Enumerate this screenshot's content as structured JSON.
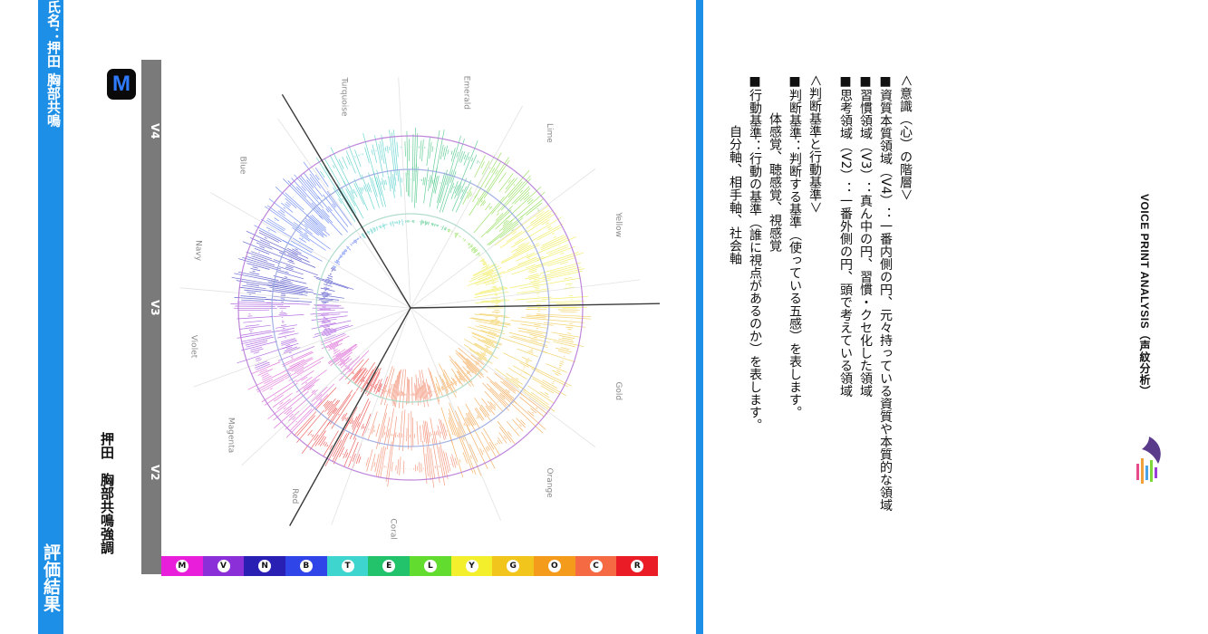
{
  "header": {
    "title": "評価結果",
    "name": "氏名：押田 胸部共鳴"
  },
  "subject": {
    "label": "押田　胸部共鳴強調"
  },
  "logo_letter": "M",
  "levels": [
    {
      "label": "V4"
    },
    {
      "label": "V3"
    },
    {
      "label": "V2"
    }
  ],
  "color_bar": [
    {
      "letter": "M",
      "color": "#e91edb"
    },
    {
      "letter": "V",
      "color": "#8b2fd8"
    },
    {
      "letter": "N",
      "color": "#2a1fb3"
    },
    {
      "letter": "B",
      "color": "#2f45e8"
    },
    {
      "letter": "T",
      "color": "#3ed5cf"
    },
    {
      "letter": "E",
      "color": "#22c36b"
    },
    {
      "letter": "L",
      "color": "#62dc2e"
    },
    {
      "letter": "Y",
      "color": "#f4ef2d"
    },
    {
      "letter": "G",
      "color": "#f2c51d"
    },
    {
      "letter": "O",
      "color": "#f59b1c"
    },
    {
      "letter": "C",
      "color": "#f56a43"
    },
    {
      "letter": "R",
      "color": "#ea1d26"
    }
  ],
  "chart_data": {
    "type": "radial",
    "sectors": [
      {
        "name": "Red",
        "color": "#e8302e"
      },
      {
        "name": "Magenta",
        "color": "#d64fcf"
      },
      {
        "name": "Violet",
        "color": "#9a3ed8"
      },
      {
        "name": "Navy",
        "color": "#3535c0"
      },
      {
        "name": "Blue",
        "color": "#4a6cf0"
      },
      {
        "name": "Turquoise",
        "color": "#3fc9c4"
      },
      {
        "name": "Emerald",
        "color": "#34bf78"
      },
      {
        "name": "Lime",
        "color": "#7ed83a"
      },
      {
        "name": "Yellow",
        "color": "#eee83a"
      },
      {
        "name": "Gold",
        "color": "#efc43a"
      },
      {
        "name": "Orange",
        "color": "#f29a3a"
      },
      {
        "name": "Coral",
        "color": "#f07a5a"
      }
    ],
    "rings": [
      "V2",
      "V3",
      "V4"
    ]
  },
  "description": {
    "section1_title": "＜意識（心）の階層＞",
    "section1_items": [
      "■資質本質領域（V4）：一番内側の円、元々持っている資質や本質的な領域",
      "■習慣領域（V3）：真ん中の円、習慣・クセ化した領域",
      "■思考領域（V2）：一番外側の円、頭で考えている領域"
    ],
    "section2_title": "＜判断基準と行動基準＞",
    "section2_item1": "■判断基準：判断する基準（使っている五感）を表します。",
    "section2_item1_sub": "体感覚、聴感覚、視感覚",
    "section2_item2": "■行動基準：行動の基準（誰に視点があるのか）を表します。",
    "section2_item2_sub": "自分軸、相手軸、社会軸"
  },
  "footer": {
    "label": "VOICE PRINT ANALYSIS（声紋分析）"
  }
}
